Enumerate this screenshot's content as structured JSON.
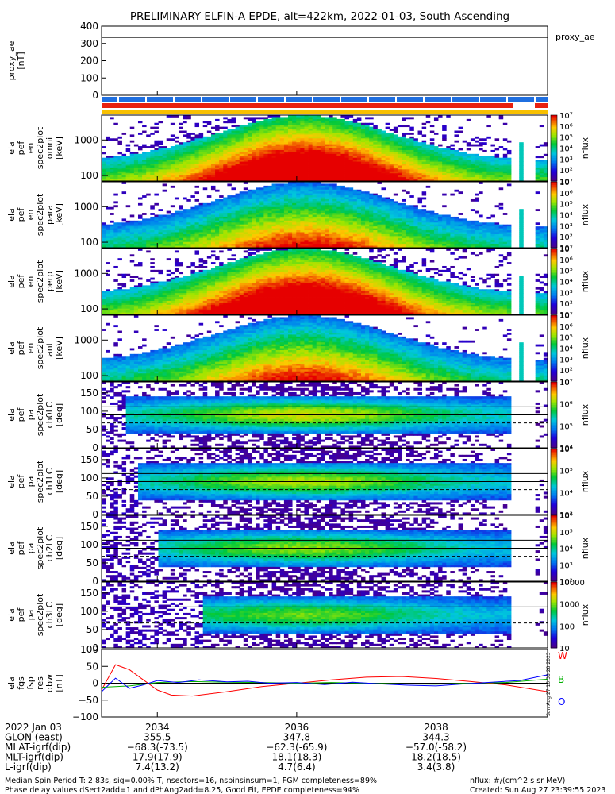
{
  "title": "PRELIMINARY ELFIN-A EPDE, alt=422km, 2022-01-03, South Ascending",
  "colors": {
    "ae_bar": "#1f6fe0",
    "red_bar": "#e82010",
    "yellow_bar": "#f8c000",
    "w_label": "#ff0000",
    "b_label": "#00b000",
    "o_label": "#0000ff"
  },
  "chart_data": [
    {
      "id": "proxy_ae",
      "type": "line",
      "title": "",
      "ylabel": "proxy_ae\n[nT]",
      "legend": "proxy_ae",
      "ylim": [
        0,
        400
      ],
      "yticks": [
        "0",
        "100",
        "200",
        "300",
        "400"
      ],
      "series": [
        {
          "name": "proxy_ae",
          "x": [
            2033.2,
            2039.6
          ],
          "y": [
            335,
            335
          ]
        }
      ]
    },
    {
      "id": "pef_en_omni",
      "type": "heatmap",
      "ylabel": "ela\npef\nen\nspec2plot\nomni\n[keV]",
      "yscale": "log",
      "yticks": [
        "100",
        "1000"
      ],
      "zscale": "log",
      "zlabel": "nflux",
      "zlim": [
        10,
        10000000
      ],
      "zticks": [
        "10",
        "10²",
        "10³",
        "10⁴",
        "10⁵",
        "10⁶",
        "10⁷"
      ]
    },
    {
      "id": "pef_en_para",
      "type": "heatmap",
      "ylabel": "ela\npef\nen\nspec2plot\npara\n[keV]",
      "yscale": "log",
      "yticks": [
        "100",
        "1000"
      ],
      "zscale": "log",
      "zlabel": "nflux",
      "zlim": [
        10,
        10000000
      ],
      "zticks": [
        "10",
        "10²",
        "10³",
        "10⁴",
        "10⁵",
        "10⁶",
        "10⁷"
      ]
    },
    {
      "id": "pef_en_perp",
      "type": "heatmap",
      "ylabel": "ela\npef\nen\nspec2plot\nperp\n[keV]",
      "yscale": "log",
      "yticks": [
        "100",
        "1000"
      ],
      "zscale": "log",
      "zlabel": "nflux",
      "zlim": [
        10,
        10000000
      ],
      "zticks": [
        "10",
        "10²",
        "10³",
        "10⁴",
        "10⁵",
        "10⁶",
        "10⁷"
      ]
    },
    {
      "id": "pef_en_anti",
      "type": "heatmap",
      "ylabel": "ela\npef\nen\nspec2plot\nanti\n[keV]",
      "yscale": "log",
      "yticks": [
        "100",
        "1000"
      ],
      "zscale": "log",
      "zlabel": "nflux",
      "zlim": [
        10,
        10000000
      ],
      "zticks": [
        "10",
        "10²",
        "10³",
        "10⁴",
        "10⁵",
        "10⁶",
        "10⁷"
      ]
    },
    {
      "id": "pef_pa_ch0",
      "type": "heatmap",
      "ylabel": "ela\npef\npa\nspec2plot\nch0LC\n[deg]",
      "ylim": [
        0,
        180
      ],
      "yticks": [
        "0",
        "50",
        "100",
        "150"
      ],
      "zscale": "log",
      "zlabel": "nflux",
      "zlim": [
        1000,
        10000000
      ],
      "zticks": [
        "10⁴",
        "10⁵",
        "10⁶",
        "10⁷"
      ]
    },
    {
      "id": "pef_pa_ch1",
      "type": "heatmap",
      "ylabel": "ela\npef\npa\nspec2plot\nch1LC\n[deg]",
      "ylim": [
        0,
        180
      ],
      "yticks": [
        "0",
        "50",
        "100",
        "150"
      ],
      "zscale": "log",
      "zlabel": "nflux",
      "zlim": [
        100,
        1000000
      ],
      "zticks": [
        "10³",
        "10⁴",
        "10⁵",
        "10⁶"
      ]
    },
    {
      "id": "pef_pa_ch2",
      "type": "heatmap",
      "ylabel": "ela\npef\npa\nspec2plot\nch2LC\n[deg]",
      "ylim": [
        0,
        180
      ],
      "yticks": [
        "0",
        "50",
        "100",
        "150"
      ],
      "zscale": "log",
      "zlabel": "nflux",
      "zlim": [
        100,
        1000000
      ],
      "zticks": [
        "10²",
        "10³",
        "10⁴",
        "10⁵",
        "10⁶"
      ]
    },
    {
      "id": "pef_pa_ch3",
      "type": "heatmap",
      "ylabel": "ela\npef\npa\nspec2plot\nch3LC\n[deg]",
      "ylim": [
        0,
        180
      ],
      "yticks": [
        "0",
        "50",
        "100",
        "150"
      ],
      "zscale": "log",
      "zlabel": "nflux",
      "zlim": [
        10,
        10000
      ],
      "zticks": [
        "10",
        "100",
        "1000",
        "10000"
      ]
    },
    {
      "id": "fgs_res",
      "type": "line",
      "ylabel": "ela\nfgs\nfsp\nres\ndbw\n[nT]",
      "ylim": [
        -100,
        100
      ],
      "yticks": [
        "-100",
        "-50",
        "0",
        "50",
        "100"
      ],
      "legend": [
        "W",
        "B",
        "O"
      ],
      "series": [
        {
          "name": "W",
          "color": "#ff0000",
          "x": [
            2033.2,
            2033.4,
            2033.6,
            2033.8,
            2034.0,
            2034.2,
            2034.5,
            2035.0,
            2035.5,
            2036.0,
            2036.5,
            2037.0,
            2037.5,
            2038.0,
            2038.5,
            2039.0,
            2039.3,
            2039.6
          ],
          "y": [
            -20,
            55,
            40,
            10,
            -20,
            -35,
            -38,
            -25,
            -10,
            0,
            10,
            18,
            20,
            14,
            5,
            -5,
            -15,
            -25
          ]
        },
        {
          "name": "B",
          "color": "#00b000",
          "x": [
            2033.2,
            2033.6,
            2034.0,
            2034.5,
            2035.0,
            2035.5,
            2036.0,
            2036.5,
            2037.0,
            2037.5,
            2038.0,
            2038.5,
            2039.0,
            2039.6
          ],
          "y": [
            -12,
            -8,
            2,
            5,
            3,
            2,
            0,
            2,
            0,
            -2,
            -3,
            0,
            2,
            12
          ]
        },
        {
          "name": "O",
          "color": "#0000ff",
          "x": [
            2033.2,
            2033.4,
            2033.6,
            2033.8,
            2034.0,
            2034.3,
            2034.6,
            2035.0,
            2035.3,
            2035.6,
            2036.0,
            2036.4,
            2036.8,
            2037.2,
            2037.6,
            2038.0,
            2038.4,
            2038.8,
            2039.2,
            2039.6
          ],
          "y": [
            -25,
            15,
            -15,
            -5,
            8,
            2,
            10,
            4,
            6,
            0,
            2,
            -4,
            3,
            -2,
            -6,
            -8,
            -2,
            3,
            8,
            25
          ]
        }
      ]
    }
  ],
  "xaxis": {
    "ticks": [
      "2034",
      "2036",
      "2038"
    ],
    "tick_values": [
      2034,
      2036,
      2038
    ],
    "xlim": [
      2033.2,
      2039.6
    ],
    "rows": [
      {
        "label": "2022 Jan 03",
        "values": [
          "2034",
          "2036",
          "2038"
        ]
      },
      {
        "label": "GLON (east)",
        "values": [
          "355.5",
          "347.8",
          "344.3"
        ]
      },
      {
        "label": "MLAT-igrf(dip)",
        "values": [
          "-68.3(-73.5)",
          "-62.3(-65.9)",
          "-57.0(-58.2)"
        ]
      },
      {
        "label": "MLT-igrf(dip)",
        "values": [
          "17.9(17.9)",
          "18.1(18.3)",
          "18.2(18.5)"
        ]
      },
      {
        "label": "L-igrf(dip)",
        "values": [
          "7.4(13.2)",
          "4.7(6.4)",
          "3.4(3.8)"
        ]
      }
    ]
  },
  "footer": {
    "left1": "Median Spin Period T: 2.83s, sig=0.00% T, nsectors=16, nspinsinsum=1, FGM completeness=89%",
    "left2": "Phase delay values dSect2add=1 and dPhAng2add=8.25, Good Fit, EPDE completeness=94%",
    "right1": "nflux: #/(cm^2 s sr MeV)",
    "right2": "Created: Sun Aug 27 23:39:55 2023",
    "side_stamp": "Sun Aug 27 16:38:28 2023"
  }
}
